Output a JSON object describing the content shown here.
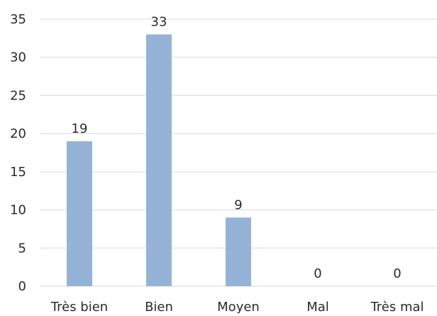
{
  "chart_data": {
    "type": "bar",
    "categories": [
      "Très bien",
      "Bien",
      "Moyen",
      "Mal",
      "Très mal"
    ],
    "values": [
      19,
      33,
      9,
      0,
      0
    ],
    "title": "",
    "xlabel": "",
    "ylabel": "",
    "ylim": [
      0,
      35
    ],
    "yticks": [
      0,
      5,
      10,
      15,
      20,
      25,
      30,
      35
    ],
    "grid": true,
    "legend": "none",
    "data_labels": true,
    "colors": {
      "bar": "#95b3d7",
      "grid": "#d9d9d9",
      "text": "#2b2b2b"
    }
  }
}
